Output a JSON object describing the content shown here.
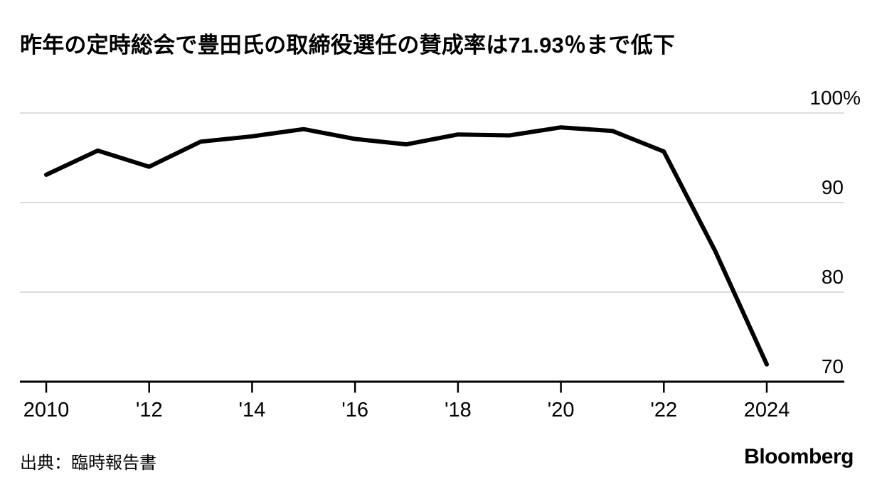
{
  "title": "昨年の定時総会で豊田氏の取締役選任の賛成率は71.93％まで低下",
  "source": "出典：臨時報告書",
  "brand": "Bloomberg",
  "colors": {
    "line": "#000000",
    "grid": "#dcdcdc",
    "axis": "#000000",
    "text": "#000000",
    "background": "#ffffff"
  },
  "chart_data": {
    "type": "line",
    "title": "昨年の定時総会で豊田氏の取締役選任の賛成率は71.93％まで低下",
    "x": [
      2010,
      2011,
      2012,
      2013,
      2014,
      2015,
      2016,
      2017,
      2018,
      2019,
      2020,
      2021,
      2022,
      2023,
      2024
    ],
    "values": [
      93.1,
      95.8,
      94.0,
      96.8,
      97.4,
      98.2,
      97.1,
      96.5,
      97.6,
      97.5,
      98.4,
      98.0,
      95.7,
      84.57,
      71.93
    ],
    "xlabel": "",
    "ylabel": "%",
    "ylim": [
      70,
      100
    ],
    "xlim": [
      2010,
      2024
    ],
    "grid": "horizontal",
    "legend": "none",
    "y_ticks": [
      {
        "value": 100,
        "label": "100%"
      },
      {
        "value": 90,
        "label": "90"
      },
      {
        "value": 80,
        "label": "80"
      },
      {
        "value": 70,
        "label": "70"
      }
    ],
    "x_ticks": [
      {
        "year": 2010,
        "label": "2010"
      },
      {
        "year": 2012,
        "label": "'12"
      },
      {
        "year": 2014,
        "label": "'14"
      },
      {
        "year": 2016,
        "label": "'16"
      },
      {
        "year": 2018,
        "label": "'18"
      },
      {
        "year": 2020,
        "label": "'20"
      },
      {
        "year": 2022,
        "label": "'22"
      },
      {
        "year": 2024,
        "label": "2024"
      }
    ]
  }
}
